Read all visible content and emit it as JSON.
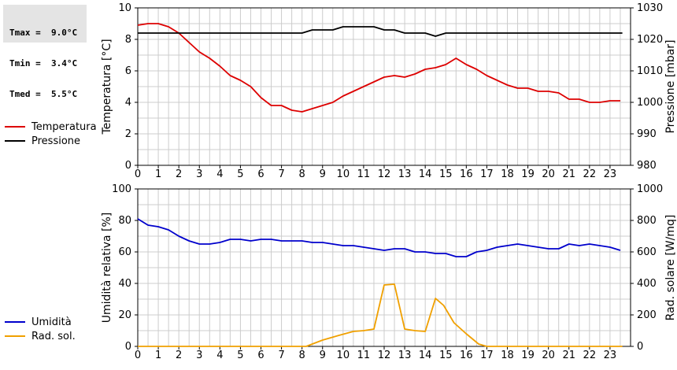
{
  "stats": {
    "tmax": "Tmax =  9.0°C",
    "tmin": "Tmin =  3.4°C",
    "tmed": "Tmed =  5.5°C"
  },
  "legend_top": [
    {
      "label": "Temperatura",
      "color": "#dd0000"
    },
    {
      "label": "Pressione",
      "color": "#000000"
    }
  ],
  "legend_bottom": [
    {
      "label": "Umidità",
      "color": "#0000cc"
    },
    {
      "label": "Rad. sol.",
      "color": "#f0a000"
    }
  ],
  "chart_data": [
    {
      "type": "line",
      "x_ticks": [
        "0",
        "1",
        "2",
        "3",
        "4",
        "5",
        "6",
        "7",
        "8",
        "9",
        "10",
        "11",
        "12",
        "13",
        "14",
        "15",
        "16",
        "17",
        "18",
        "19",
        "20",
        "21",
        "22",
        "23"
      ],
      "xlim": [
        0,
        24
      ],
      "ylabel_left": "Temperatura [°C]",
      "ylim_left": [
        0,
        10
      ],
      "yticks_left": [
        0,
        2,
        4,
        6,
        8,
        10
      ],
      "ylabel_right": "Pressione [mbar]",
      "ylim_right": [
        980,
        1030
      ],
      "yticks_right": [
        980,
        990,
        1000,
        1010,
        1020,
        1030
      ],
      "grid": true,
      "series": [
        {
          "name": "Temperatura",
          "axis": "left",
          "color": "#dd0000",
          "x": [
            0,
            0.5,
            1,
            1.5,
            2,
            2.5,
            3,
            3.5,
            4,
            4.5,
            5,
            5.5,
            6,
            6.5,
            7,
            7.5,
            8,
            8.5,
            9,
            9.5,
            10,
            10.5,
            11,
            11.5,
            12,
            12.5,
            13,
            13.5,
            14,
            14.5,
            15,
            15.5,
            16,
            16.5,
            17,
            17.5,
            18,
            18.5,
            19,
            19.5,
            20,
            20.5,
            21,
            21.5,
            22,
            22.5,
            23,
            23.5
          ],
          "values": [
            8.9,
            9.0,
            9.0,
            8.8,
            8.4,
            7.8,
            7.2,
            6.8,
            6.3,
            5.7,
            5.4,
            5.0,
            4.3,
            3.8,
            3.8,
            3.5,
            3.4,
            3.6,
            3.8,
            4.0,
            4.4,
            4.7,
            5.0,
            5.3,
            5.6,
            5.7,
            5.6,
            5.8,
            6.1,
            6.2,
            6.4,
            6.8,
            6.4,
            6.1,
            5.7,
            5.4,
            5.1,
            4.9,
            4.9,
            4.7,
            4.7,
            4.6,
            4.2,
            4.2,
            4.0,
            4.0,
            4.1,
            4.1
          ]
        },
        {
          "name": "Pressione",
          "axis": "right",
          "color": "#000000",
          "x": [
            0,
            8,
            8.5,
            9.5,
            10,
            11.5,
            12,
            12.5,
            13,
            14,
            14.5,
            15,
            23.6
          ],
          "values": [
            1022,
            1022,
            1023,
            1023,
            1024,
            1024,
            1023,
            1023,
            1022,
            1022,
            1021,
            1022,
            1022
          ]
        }
      ]
    },
    {
      "type": "line",
      "x_ticks": [
        "0",
        "1",
        "2",
        "3",
        "4",
        "5",
        "6",
        "7",
        "8",
        "9",
        "10",
        "11",
        "12",
        "13",
        "14",
        "15",
        "16",
        "17",
        "18",
        "19",
        "20",
        "21",
        "22",
        "23"
      ],
      "xlim": [
        0,
        24
      ],
      "ylabel_left": "Umidità relativa [%]",
      "ylim_left": [
        0,
        100
      ],
      "yticks_left": [
        0,
        20,
        40,
        60,
        80,
        100
      ],
      "ylabel_right": "Rad. solare [W/mq]",
      "ylim_right": [
        0,
        1000
      ],
      "yticks_right": [
        0,
        200,
        400,
        600,
        800,
        1000
      ],
      "grid": true,
      "series": [
        {
          "name": "Umidità",
          "axis": "left",
          "color": "#0000cc",
          "x": [
            0,
            0.5,
            1,
            1.5,
            2,
            2.5,
            3,
            3.5,
            4,
            4.5,
            5,
            5.5,
            6,
            6.5,
            7,
            7.5,
            8,
            8.5,
            9,
            9.5,
            10,
            10.5,
            11,
            11.5,
            12,
            12.5,
            13,
            13.5,
            14,
            14.5,
            15,
            15.5,
            16,
            16.5,
            17,
            17.5,
            18,
            18.5,
            19,
            19.5,
            20,
            20.5,
            21,
            21.5,
            22,
            22.5,
            23,
            23.5
          ],
          "values": [
            81,
            77,
            76,
            74,
            70,
            67,
            65,
            65,
            66,
            68,
            68,
            67,
            68,
            68,
            67,
            67,
            67,
            66,
            66,
            65,
            64,
            64,
            63,
            62,
            61,
            62,
            62,
            60,
            60,
            59,
            59,
            57,
            57,
            60,
            61,
            63,
            64,
            65,
            64,
            63,
            62,
            62,
            65,
            64,
            65,
            64,
            63,
            61
          ]
        },
        {
          "name": "Rad. sol.",
          "axis": "right",
          "color": "#f0a000",
          "x": [
            0,
            8.2,
            9,
            9.8,
            10.5,
            11,
            11.5,
            12,
            12.5,
            13,
            13.5,
            14,
            14.5,
            14.9,
            15.4,
            16,
            16.6,
            17,
            23.6
          ],
          "values": [
            0,
            0,
            40,
            70,
            95,
            100,
            110,
            390,
            395,
            110,
            100,
            95,
            305,
            260,
            150,
            80,
            15,
            0,
            0
          ]
        }
      ]
    }
  ]
}
